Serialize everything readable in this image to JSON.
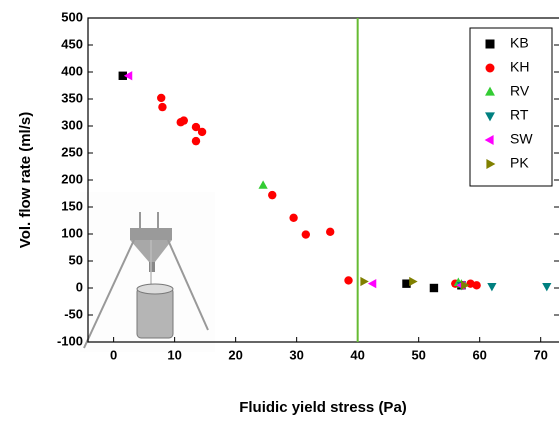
{
  "chart_data": {
    "type": "scatter",
    "x_label": "Fluidic yield stress (Pa)",
    "y_label": "Vol. flow rate (ml/s)",
    "xlim": [
      -4.2,
      73
    ],
    "ylim": [
      -100,
      500
    ],
    "xticks": [
      0,
      10,
      20,
      30,
      40,
      50,
      60,
      70
    ],
    "yticks": [
      -100,
      -50,
      0,
      50,
      100,
      150,
      200,
      250,
      300,
      350,
      400,
      450,
      500
    ],
    "vline": {
      "x": 40,
      "color": "#66bb33"
    },
    "legend": "upper right",
    "series": [
      {
        "name": "KB",
        "color": "#000000",
        "marker": "square",
        "x": [
          1.5,
          48,
          52.5,
          57
        ],
        "values": [
          393,
          8,
          0,
          5
        ]
      },
      {
        "name": "KH",
        "color": "#ff0000",
        "marker": "circle",
        "x": [
          7.8,
          8,
          11,
          11.5,
          13.5,
          13.5,
          14.5,
          26,
          29.5,
          31.5,
          35.5,
          38.5,
          56,
          58.5,
          59.5
        ],
        "values": [
          352,
          335,
          307,
          310,
          298,
          272,
          289,
          172,
          130,
          99,
          104,
          14,
          8,
          8,
          5
        ]
      },
      {
        "name": "RV",
        "color": "#33cc33",
        "marker": "triangle-up",
        "x": [
          24.5,
          56.5,
          57
        ],
        "values": [
          190,
          10,
          7
        ]
      },
      {
        "name": "RT",
        "color": "#008080",
        "marker": "triangle-down",
        "x": [
          57,
          62,
          71
        ],
        "values": [
          5,
          3,
          3
        ]
      },
      {
        "name": "SW",
        "color": "#ff00ff",
        "marker": "triangle-left",
        "x": [
          2.5,
          42.5,
          57
        ],
        "values": [
          393,
          8,
          5
        ]
      },
      {
        "name": "PK",
        "color": "#808000",
        "marker": "triangle-right",
        "x": [
          41,
          49,
          57.5
        ],
        "values": [
          12,
          12,
          5
        ]
      }
    ]
  }
}
